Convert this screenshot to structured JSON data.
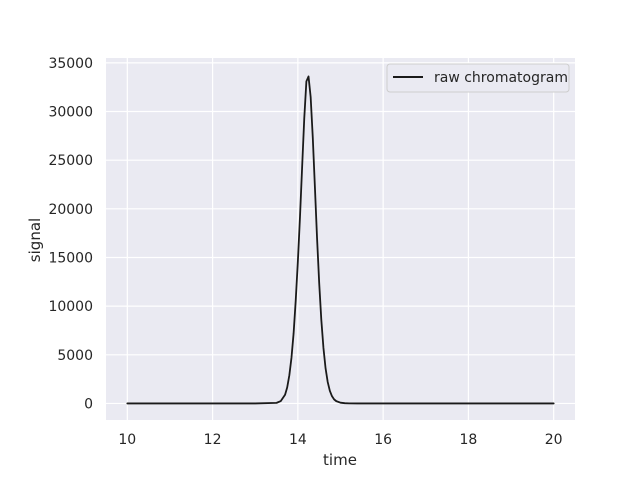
{
  "chart_data": {
    "type": "line",
    "title": "",
    "xlabel": "time",
    "ylabel": "signal",
    "xlim": [
      9.5,
      20.5
    ],
    "ylim": [
      -1700,
      35500
    ],
    "xticks": [
      10,
      12,
      14,
      16,
      18,
      20
    ],
    "yticks": [
      0,
      5000,
      10000,
      15000,
      20000,
      25000,
      30000,
      35000
    ],
    "grid": true,
    "legend_position": "top-right",
    "series": [
      {
        "name": "raw chromatogram",
        "color": "#1a1a1a",
        "x": [
          10.0,
          13.0,
          13.5,
          13.6,
          13.7,
          13.75,
          13.8,
          13.85,
          13.9,
          13.95,
          14.0,
          14.05,
          14.1,
          14.15,
          14.2,
          14.25,
          14.3,
          14.35,
          14.4,
          14.45,
          14.5,
          14.55,
          14.6,
          14.65,
          14.7,
          14.75,
          14.8,
          14.85,
          14.9,
          15.0,
          15.1,
          15.2,
          15.4,
          20.0
        ],
        "y": [
          0,
          0,
          60,
          250,
          900,
          1650,
          2900,
          4700,
          7200,
          10600,
          14600,
          19200,
          24300,
          29300,
          33100,
          33600,
          31500,
          27300,
          22200,
          17000,
          12400,
          8600,
          5700,
          3600,
          2200,
          1300,
          750,
          420,
          240,
          80,
          30,
          10,
          0,
          0
        ]
      }
    ]
  }
}
